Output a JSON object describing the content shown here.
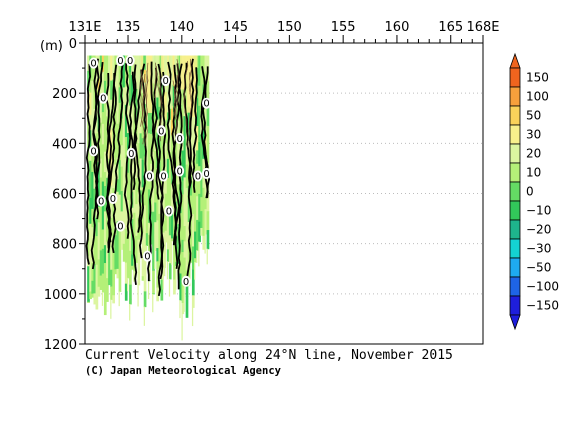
{
  "chart_data": {
    "type": "heatmap",
    "title": "Current Velocity along 24°N line, November 2015",
    "credit": "(C) Japan Meteorological Agency",
    "x_axis": {
      "range": [
        131,
        168
      ],
      "ticks": [
        {
          "value": 131,
          "label": "131E"
        },
        {
          "value": 135,
          "label": "135"
        },
        {
          "value": 140,
          "label": "140"
        },
        {
          "value": 145,
          "label": "145"
        },
        {
          "value": 150,
          "label": "150"
        },
        {
          "value": 155,
          "label": "155"
        },
        {
          "value": 160,
          "label": "160"
        },
        {
          "value": 165,
          "label": "165"
        },
        {
          "value": 168,
          "label": "168E"
        }
      ]
    },
    "y_axis": {
      "unit": "(m)",
      "range": [
        0,
        1200
      ],
      "inverted": true,
      "ticks": [
        {
          "value": 0,
          "label": "0"
        },
        {
          "value": 200,
          "label": "200"
        },
        {
          "value": 400,
          "label": "400"
        },
        {
          "value": 600,
          "label": "600"
        },
        {
          "value": 800,
          "label": "800"
        },
        {
          "value": 1000,
          "label": "1000"
        },
        {
          "value": 1200,
          "label": "1200"
        }
      ]
    },
    "grid": true,
    "colorbar": {
      "placement": "right",
      "levels": [
        {
          "label": "150",
          "color": "#f0641e"
        },
        {
          "label": "100",
          "color": "#f7a03c"
        },
        {
          "label": "50",
          "color": "#fad25a"
        },
        {
          "label": "30",
          "color": "#f8f08c"
        },
        {
          "label": "20",
          "color": "#dcf5a0"
        },
        {
          "label": "10",
          "color": "#b4f078"
        },
        {
          "label": "0",
          "color": "#64dc64"
        },
        {
          "label": "−10",
          "color": "#32c85a"
        },
        {
          "label": "−20",
          "color": "#1eb48c"
        },
        {
          "label": "−30",
          "color": "#14d2d2"
        },
        {
          "label": "−50",
          "color": "#1eaaf0"
        },
        {
          "label": "−100",
          "color": "#1e64e6"
        },
        {
          "label": "−150",
          "color": "#1e1edc"
        }
      ]
    },
    "data_extent": {
      "lon_min": 131.2,
      "lon_max": 142.5,
      "depth_min": 50,
      "depth_max": 1150
    },
    "zero_contour_label": "0",
    "zero_contour_label_positions": [
      {
        "lon": 131.8,
        "depth": 80
      },
      {
        "lon": 134.3,
        "depth": 70
      },
      {
        "lon": 135.2,
        "depth": 70
      },
      {
        "lon": 138.5,
        "depth": 150
      },
      {
        "lon": 132.7,
        "depth": 220
      },
      {
        "lon": 142.3,
        "depth": 240
      },
      {
        "lon": 138.1,
        "depth": 350
      },
      {
        "lon": 139.8,
        "depth": 380
      },
      {
        "lon": 131.8,
        "depth": 430
      },
      {
        "lon": 135.3,
        "depth": 440
      },
      {
        "lon": 139.8,
        "depth": 510
      },
      {
        "lon": 137.0,
        "depth": 530
      },
      {
        "lon": 138.3,
        "depth": 530
      },
      {
        "lon": 141.5,
        "depth": 530
      },
      {
        "lon": 142.3,
        "depth": 520
      },
      {
        "lon": 132.5,
        "depth": 630
      },
      {
        "lon": 133.6,
        "depth": 620
      },
      {
        "lon": 138.8,
        "depth": 670
      },
      {
        "lon": 134.3,
        "depth": 730
      },
      {
        "lon": 136.8,
        "depth": 850
      },
      {
        "lon": 140.4,
        "depth": 950
      }
    ]
  }
}
